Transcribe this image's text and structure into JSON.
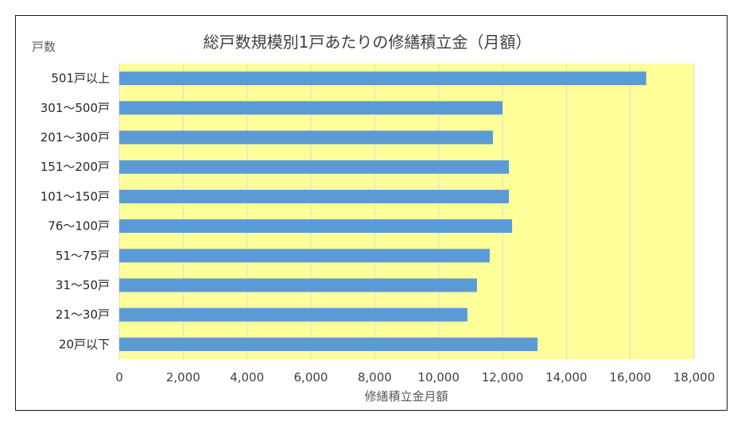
{
  "chart_data": {
    "type": "bar",
    "orientation": "horizontal",
    "title": "総戸数規模別1戸あたりの修繕積立金（月額）",
    "ylabel": "戸数",
    "xlabel": "修繕積立金月額",
    "categories": [
      "501戸以上",
      "301～500戸",
      "201～300戸",
      "151～200戸",
      "101～150戸",
      "76～100戸",
      "51～75戸",
      "31～50戸",
      "21～30戸",
      "20戸以下"
    ],
    "values": [
      16500,
      12000,
      11700,
      12200,
      12200,
      12300,
      11600,
      11200,
      10900,
      13100
    ],
    "xlim": [
      0,
      18000
    ],
    "xticks": [
      "0",
      "2,000",
      "4,000",
      "6,000",
      "8,000",
      "10,000",
      "12,000",
      "14,000",
      "16,000",
      "18,000"
    ],
    "xtick_values": [
      0,
      2000,
      4000,
      6000,
      8000,
      10000,
      12000,
      14000,
      16000,
      18000
    ],
    "grid": true,
    "legend": "none",
    "colors": {
      "bar": "#5b9bd5",
      "plot_bg": "#ffff99",
      "grid": "#d9d9d9"
    }
  }
}
